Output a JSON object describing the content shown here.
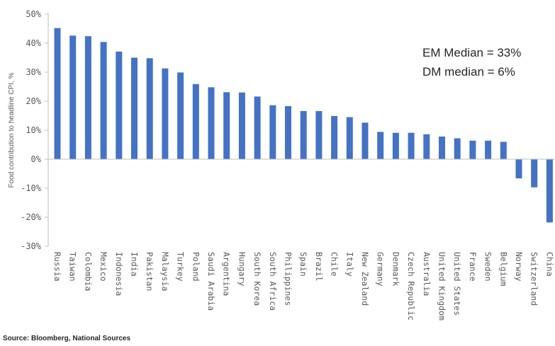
{
  "chart_data": {
    "type": "bar",
    "ylabel": "Food contribution to headline CPI, %",
    "ylim": [
      -30,
      50
    ],
    "ytick_step": 10,
    "ytick_suffix": "%",
    "grid": false,
    "bar_color": "#4472C4",
    "categories": [
      "Russia",
      "Taiwan",
      "Colombia",
      "Mexico",
      "Indonesia",
      "India",
      "Pakistan",
      "Malaysia",
      "Turkey",
      "Poland",
      "Saudi Arabia",
      "Argentina",
      "Hungary",
      "South Korea",
      "South Africa",
      "Philippines",
      "Spain",
      "Brazil",
      "Chile",
      "Italy",
      "New Zealand",
      "Germany",
      "Denmark",
      "Czech Republic",
      "Australia",
      "United Kingdom",
      "United States",
      "France",
      "Sweden",
      "Belgium",
      "Norway",
      "Switzerland",
      "China"
    ],
    "values": [
      45.2,
      42.6,
      42.4,
      40.4,
      37.1,
      35.0,
      34.8,
      31.3,
      29.9,
      25.9,
      24.8,
      23.1,
      23.0,
      21.6,
      18.6,
      18.3,
      16.6,
      16.6,
      14.9,
      14.5,
      12.6,
      9.4,
      9.1,
      9.1,
      8.6,
      7.8,
      7.2,
      6.4,
      6.4,
      6.0,
      -6.6,
      -9.7,
      -21.8
    ],
    "annotations": [
      "EM Median = 33%",
      "DM median = 6%"
    ]
  },
  "footer": {
    "source": "Source: Bloomberg, National Sources"
  }
}
